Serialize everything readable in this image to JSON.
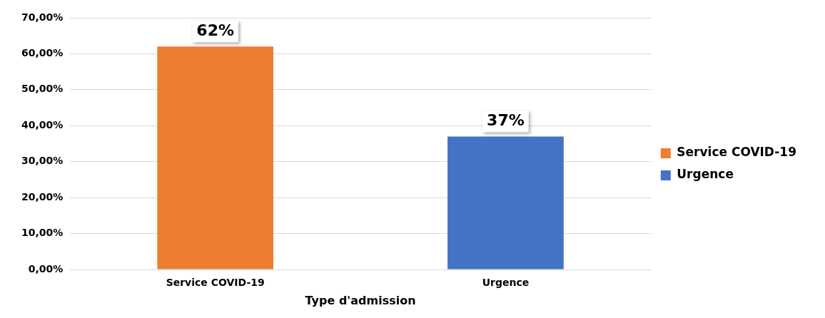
{
  "chart_data": {
    "type": "bar",
    "xlabel": "Type d'admission",
    "categories": [
      "Service COVID-19",
      "Urgence"
    ],
    "series": [
      {
        "name": "Service COVID-19",
        "color": "#ed7d31",
        "values": [
          62,
          null
        ],
        "value_labels": [
          "62%",
          null
        ]
      },
      {
        "name": "Urgence",
        "color": "#4472c4",
        "values": [
          null,
          37
        ],
        "value_labels": [
          null,
          "37%"
        ]
      }
    ],
    "ylim": [
      0,
      70
    ],
    "yticks": [
      {
        "value": 0,
        "label": "0,00%"
      },
      {
        "value": 10,
        "label": "10,00%"
      },
      {
        "value": 20,
        "label": "20,00%"
      },
      {
        "value": 30,
        "label": "30,00%"
      },
      {
        "value": 40,
        "label": "40,00%"
      },
      {
        "value": 50,
        "label": "50,00%"
      },
      {
        "value": 60,
        "label": "60,00%"
      },
      {
        "value": 70,
        "label": "70,00%"
      }
    ],
    "grid": "y",
    "legend": "right"
  }
}
